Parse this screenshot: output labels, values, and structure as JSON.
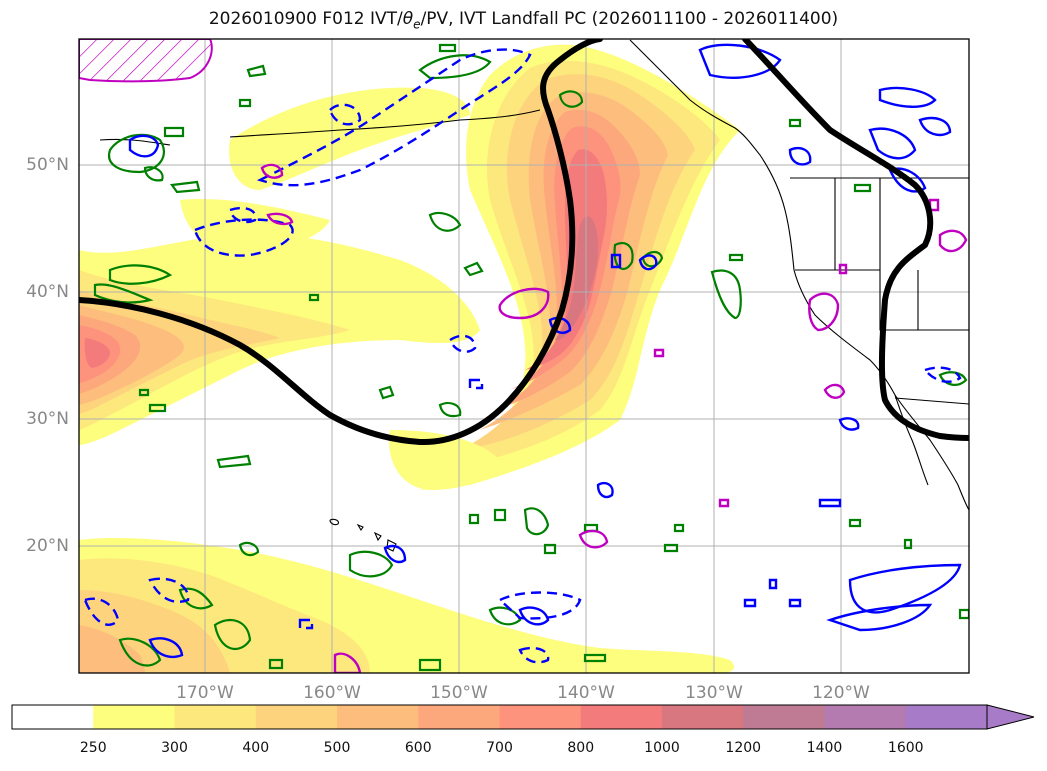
{
  "title": "2026010900 F012 IVT/θe/PV, IVT Landfall PC (2026011100 - 2026011400)",
  "title_parts": {
    "prefix": "2026010900 F012 IVT/",
    "theta": "θ",
    "sub_e": "e",
    "suffix": "/PV, IVT Landfall PC (2026011100 - 2026011400)"
  },
  "lat_labels": [
    "50°N",
    "40°N",
    "30°N",
    "20°N"
  ],
  "lon_labels": [
    "170°W",
    "160°W",
    "150°W",
    "140°W",
    "130°W",
    "120°W"
  ],
  "colorbar": {
    "ticks": [
      "250",
      "300",
      "400",
      "500",
      "600",
      "700",
      "800",
      "1000",
      "1200",
      "1400",
      "1600"
    ],
    "colors": [
      "#ffffff",
      "#fefe7e",
      "#fde87d",
      "#fdd37d",
      "#fdbe7d",
      "#fda87c",
      "#fd937c",
      "#f47b7c",
      "#d8777f",
      "#c07b94",
      "#b47bb1",
      "#a77bc8"
    ],
    "extend": "max"
  },
  "colors": {
    "ivt_low": "#fefe7e",
    "ivt_high": "#e8747c",
    "pc_contour": "#000000",
    "pv_contour": "#0000ff",
    "theta_contour": "#008000",
    "magenta_contour": "#c000c0",
    "grid": "#b0b0b0",
    "axis_label": "#888888"
  }
}
